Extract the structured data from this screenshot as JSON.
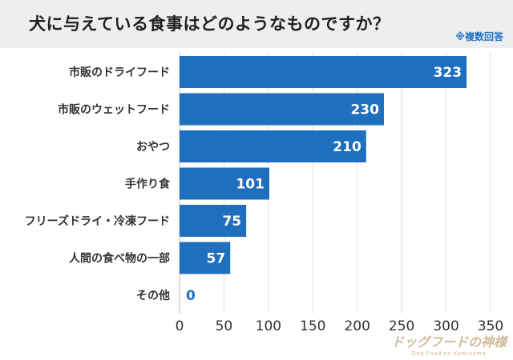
{
  "header": {
    "title": "犬に与えている食事はどのようなものですか？",
    "note": "※複数回答"
  },
  "colors": {
    "bar": "#1f6fbf",
    "background": "#ffffff",
    "title_band": "#eeeeee",
    "value_outside": "#1f6fbf"
  },
  "chart_data": {
    "type": "bar",
    "orientation": "horizontal",
    "title": "犬に与えている食事はどのようなものですか？",
    "subtitle": "※複数回答",
    "categories": [
      "市販のドライフード",
      "市販のウェットフード",
      "おやつ",
      "手作り食",
      "フリーズドライ・冷凍フード",
      "人間の食べ物の一部",
      "その他"
    ],
    "values": [
      323,
      230,
      210,
      101,
      75,
      57,
      0
    ],
    "xlim": [
      0,
      350
    ],
    "xticks": [
      0,
      50,
      100,
      150,
      200,
      250,
      300,
      350
    ],
    "xlabel": "",
    "ylabel": "",
    "grid": true,
    "data_labels": true
  },
  "watermark": {
    "main": "ドッグフードの神様",
    "sub": "Dog Food no Kamisama"
  }
}
